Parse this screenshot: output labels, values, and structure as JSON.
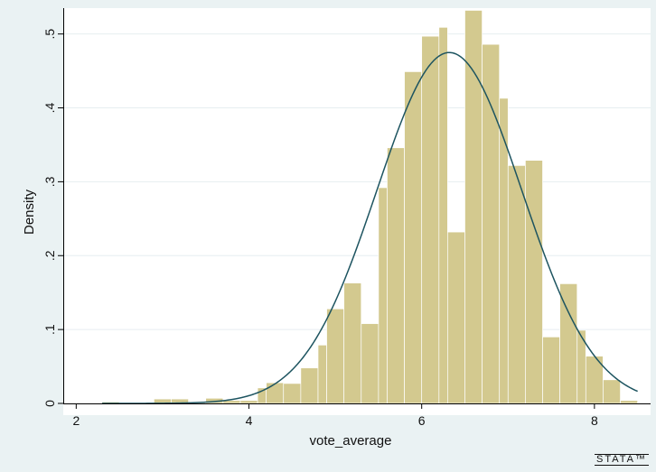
{
  "chart_data": {
    "type": "bar",
    "subtype": "histogram-with-normal-density",
    "xlabel": "vote_average",
    "ylabel": "Density",
    "xlim": [
      1.85,
      8.65
    ],
    "ylim": [
      0,
      0.535
    ],
    "xticks": [
      2,
      4,
      6,
      8
    ],
    "xtick_labels": [
      "2",
      "4",
      "6",
      "8"
    ],
    "yticks": [
      0,
      0.1,
      0.2,
      0.3,
      0.4,
      0.5
    ],
    "ytick_labels": [
      "0",
      ".1",
      ".2",
      ".3",
      ".4",
      ".5"
    ],
    "grid": "horizontal",
    "bin_width": 0.2,
    "bins": [
      {
        "x0": 2.3,
        "x1": 2.5,
        "density": 0.002
      },
      {
        "x0": 2.5,
        "x1": 2.7,
        "density": 0.001
      },
      {
        "x0": 2.7,
        "x1": 2.9,
        "density": 0.001
      },
      {
        "x0": 2.9,
        "x1": 3.1,
        "density": 0.006
      },
      {
        "x0": 3.1,
        "x1": 3.3,
        "density": 0.006
      },
      {
        "x0": 3.3,
        "x1": 3.5,
        "density": 0.002
      },
      {
        "x0": 3.5,
        "x1": 3.7,
        "density": 0.007
      },
      {
        "x0": 3.7,
        "x1": 3.9,
        "density": 0.004
      },
      {
        "x0": 3.9,
        "x1": 4.1,
        "density": 0.004
      },
      {
        "x0": 4.1,
        "x1": 4.2,
        "density": 0.021
      },
      {
        "x0": 4.2,
        "x1": 4.4,
        "density": 0.028
      },
      {
        "x0": 4.4,
        "x1": 4.6,
        "density": 0.027
      },
      {
        "x0": 4.6,
        "x1": 4.8,
        "density": 0.048
      },
      {
        "x0": 4.8,
        "x1": 4.9,
        "density": 0.079
      },
      {
        "x0": 4.9,
        "x1": 5.1,
        "density": 0.128
      },
      {
        "x0": 5.1,
        "x1": 5.3,
        "density": 0.163
      },
      {
        "x0": 5.3,
        "x1": 5.5,
        "density": 0.108
      },
      {
        "x0": 5.5,
        "x1": 5.6,
        "density": 0.292
      },
      {
        "x0": 5.6,
        "x1": 5.8,
        "density": 0.346
      },
      {
        "x0": 5.8,
        "x1": 6.0,
        "density": 0.449
      },
      {
        "x0": 6.0,
        "x1": 6.2,
        "density": 0.497
      },
      {
        "x0": 6.2,
        "x1": 6.3,
        "density": 0.509
      },
      {
        "x0": 6.3,
        "x1": 6.5,
        "density": 0.232
      },
      {
        "x0": 6.5,
        "x1": 6.7,
        "density": 0.532
      },
      {
        "x0": 6.7,
        "x1": 6.9,
        "density": 0.486
      },
      {
        "x0": 6.9,
        "x1": 7.0,
        "density": 0.413
      },
      {
        "x0": 7.0,
        "x1": 7.2,
        "density": 0.322
      },
      {
        "x0": 7.2,
        "x1": 7.4,
        "density": 0.329
      },
      {
        "x0": 7.4,
        "x1": 7.6,
        "density": 0.09
      },
      {
        "x0": 7.6,
        "x1": 7.8,
        "density": 0.162
      },
      {
        "x0": 7.8,
        "x1": 7.9,
        "density": 0.099
      },
      {
        "x0": 7.9,
        "x1": 8.1,
        "density": 0.064
      },
      {
        "x0": 8.1,
        "x1": 8.3,
        "density": 0.032
      },
      {
        "x0": 8.3,
        "x1": 8.5,
        "density": 0.004
      }
    ],
    "normal_curve": {
      "mean": 6.32,
      "sd": 0.84,
      "x_range": [
        2.3,
        8.5
      ]
    },
    "colors": {
      "bar_fill": "#d3c98f",
      "bar_stroke": "#ffffff",
      "curve": "#1d5460",
      "plot_bg": "#ffffff",
      "outer_bg": "#eaf2f3",
      "grid": "#e6eef0"
    }
  },
  "branding": {
    "logo_text": "STATA™"
  }
}
